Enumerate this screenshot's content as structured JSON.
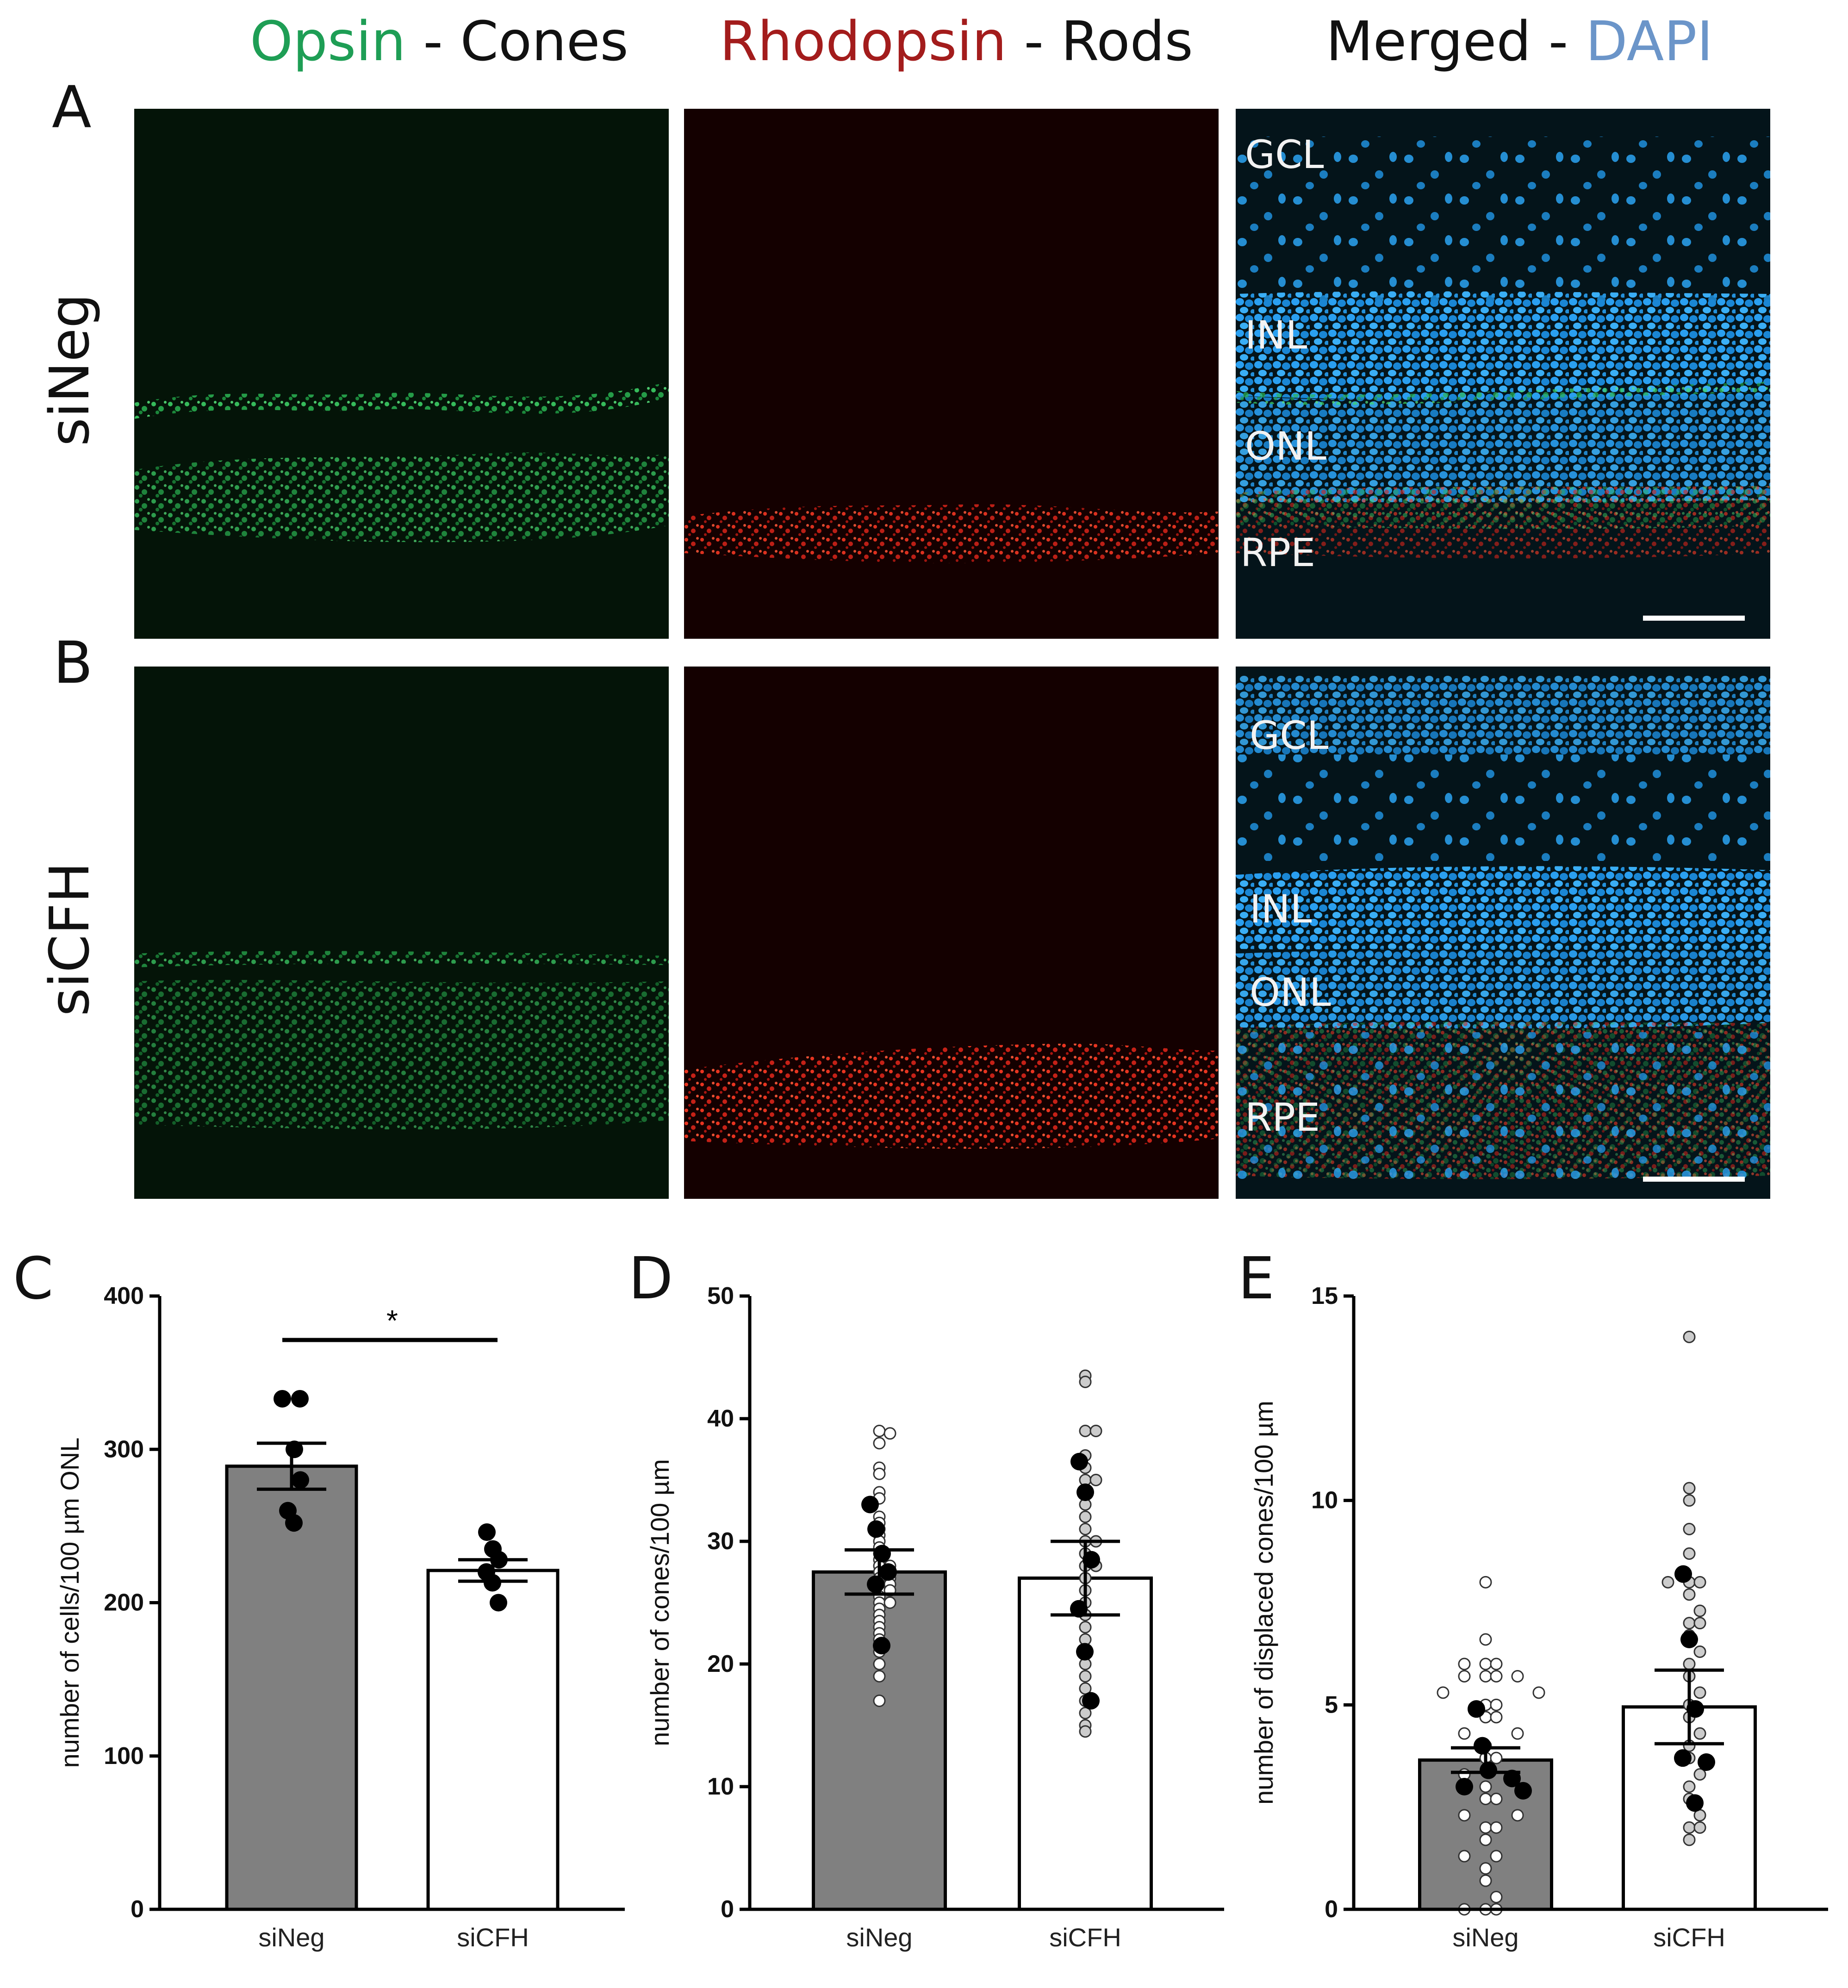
{
  "column_headers": [
    {
      "stain": "Opsin",
      "sep": " - ",
      "target": "Cones",
      "stain_color": "#1e9e55"
    },
    {
      "stain": "Rhodopsin",
      "sep": " - ",
      "target": "Rods",
      "stain_color": "#a31c1c"
    },
    {
      "stain": "Merged",
      "sep": " - ",
      "target": "DAPI",
      "target_color": "#6b95c9"
    }
  ],
  "row_labels": [
    "siNeg",
    "siCFH"
  ],
  "panel_letters": [
    "A",
    "B",
    "C",
    "D",
    "E"
  ],
  "layer_labels_A": [
    "GCL",
    "INL",
    "ONL",
    "RPE"
  ],
  "layer_labels_B": [
    "GCL",
    "INL",
    "ONL",
    "RPE"
  ],
  "colors": {
    "bar_siNeg": "#808080",
    "bar_siCFH": "#ffffff",
    "dapi": "#1e90d8",
    "opsin": "#2fbf5a",
    "rhodopsin": "#e0281e"
  },
  "chart_data": [
    {
      "id": "C",
      "type": "bar",
      "categories": [
        "siNeg",
        "siCFH"
      ],
      "ylabel": "number of cells/100 µm ONL",
      "ylim": [
        0,
        400
      ],
      "yticks": [
        0,
        100,
        200,
        300,
        400
      ],
      "values": [
        289,
        221
      ],
      "sem": [
        15,
        7
      ],
      "points": [
        [
          333,
          333,
          300,
          280,
          260,
          252
        ],
        [
          246,
          235,
          228,
          220,
          213,
          200
        ]
      ],
      "significance": "*"
    },
    {
      "id": "D",
      "type": "bar",
      "categories": [
        "siNeg",
        "siCFH"
      ],
      "ylabel": "number of cones/100 µm",
      "ylim": [
        0,
        50
      ],
      "yticks": [
        0,
        10,
        20,
        30,
        40,
        50
      ],
      "values": [
        27.5,
        27
      ],
      "sem": [
        1.8,
        3.0
      ],
      "mean_points": [
        [
          33,
          31,
          29,
          27.5,
          26.5,
          21.5
        ],
        [
          36.5,
          34,
          28.5,
          24.5,
          21,
          17
        ]
      ],
      "individual_points": [
        [
          39,
          38.8,
          38,
          36,
          35.5,
          34,
          33.5,
          32,
          31.5,
          31,
          30.5,
          30,
          29.5,
          29,
          28.5,
          28,
          28,
          27.5,
          27.5,
          27,
          27,
          26.5,
          26.5,
          26,
          26,
          25.5,
          25,
          25,
          24.5,
          24,
          23.5,
          23,
          22.5,
          22,
          21,
          20,
          19,
          17
        ],
        [
          43.5,
          43,
          39,
          39,
          37,
          36,
          35,
          35,
          34,
          33,
          32,
          31,
          30,
          30,
          29,
          28,
          28,
          27,
          26,
          25,
          24,
          23,
          22,
          21,
          20,
          19,
          18,
          17,
          16,
          15,
          14.5
        ]
      ]
    },
    {
      "id": "E",
      "type": "bar",
      "categories": [
        "siNeg",
        "siCFH"
      ],
      "ylabel": "number of displaced cones/100 µm",
      "ylim": [
        0,
        15
      ],
      "yticks": [
        0,
        5,
        10,
        15
      ],
      "values": [
        3.65,
        4.95
      ],
      "sem": [
        0.3,
        0.9
      ],
      "mean_points": [
        [
          4.9,
          4.0,
          3.4,
          3.2,
          3.0,
          2.9
        ],
        [
          8.2,
          6.6,
          4.9,
          3.7,
          3.6,
          2.6
        ]
      ],
      "individual_points": [
        [
          8,
          6.6,
          6,
          6,
          6,
          5.7,
          5.7,
          5.7,
          5.7,
          5.3,
          5.3,
          5,
          5,
          4.7,
          4.7,
          4.3,
          4.3,
          4,
          3.7,
          3.7,
          3.3,
          3,
          2.7,
          2.7,
          2.3,
          2.3,
          2,
          2,
          1.7,
          1.3,
          1.3,
          1,
          0.7,
          0.3,
          0,
          0,
          0
        ],
        [
          14,
          10.3,
          10,
          9.3,
          8.7,
          8,
          8,
          8,
          7.7,
          7.3,
          7,
          7,
          6.7,
          6.3,
          6,
          5.7,
          5.3,
          5,
          4.7,
          4.3,
          4,
          3.7,
          3.3,
          3,
          2.7,
          2.3,
          2,
          2,
          1.7
        ]
      ]
    }
  ]
}
